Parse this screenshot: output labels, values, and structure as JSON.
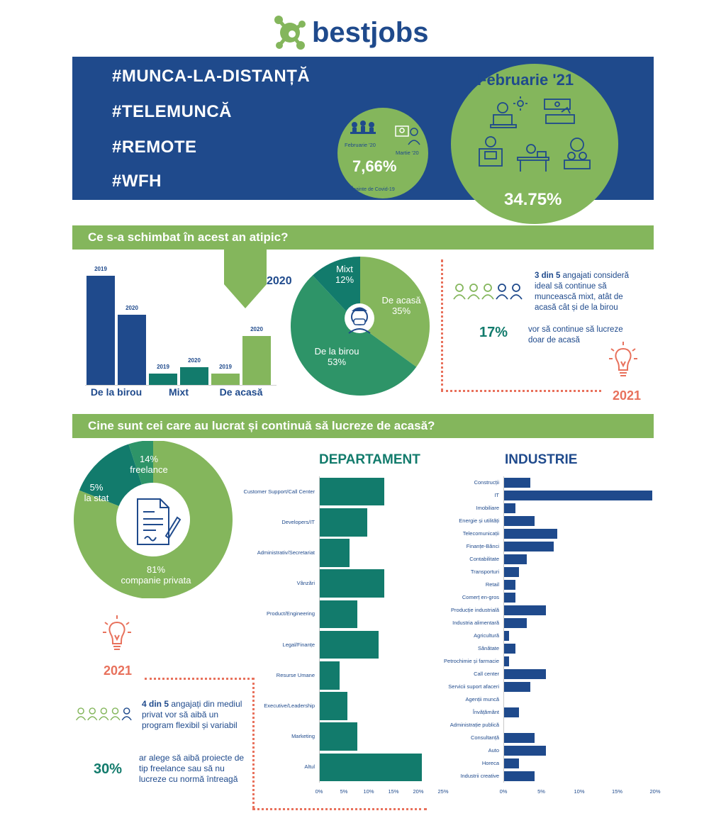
{
  "header": {
    "brand": "bestjobs"
  },
  "banner": {
    "tags": [
      "#MUNCA-LA-DISTANȚĂ",
      "#TELEMUNCĂ",
      "#REMOTE",
      "#WFH"
    ],
    "small_circle": {
      "left_label": "Februarie '20",
      "right_label": "Martie '20",
      "value": "7,66%",
      "caption": "Înainte de Covid-19"
    },
    "big_circle": {
      "title": "Februarie '21",
      "value": "34.75%"
    }
  },
  "section1": {
    "title": "Ce s-a schimbat în acest an atipic?",
    "bars": {
      "groups": [
        {
          "label": "De la birou",
          "v2019": 28,
          "v2020": 18
        },
        {
          "label": "Mixt",
          "v2019": 3,
          "v2020": 4.5
        },
        {
          "label": "De acasă",
          "v2019": 3,
          "v2020": 12.5
        }
      ],
      "year_a": "2019",
      "year_b": "2020"
    },
    "pie": {
      "year": "2020",
      "slices": [
        {
          "name": "De acasă",
          "pct": "35%",
          "value": 35,
          "color": "#84b65c"
        },
        {
          "name": "De la birou",
          "pct": "53%",
          "value": 53,
          "color": "#2e9468"
        },
        {
          "name": "Mixt",
          "pct": "12%",
          "value": 12,
          "color": "#127b6c"
        }
      ]
    },
    "insight": {
      "bold": "3 din 5",
      "text": " angajati consideră ideal să continue să muncească mixt, atât de acasă cât și de la birou",
      "pct": "17%",
      "pct_text": "vor să continue să lucreze doar de acasă",
      "year": "2021"
    }
  },
  "section2": {
    "title": "Cine sunt cei care au lucrat și continuă să lucreze de acasă?",
    "donut": {
      "slices": [
        {
          "pct": "14%",
          "name": "freelance",
          "value": 14,
          "color": "#127b6c"
        },
        {
          "pct": "5%",
          "name": "la stat",
          "value": 5,
          "color": "#2e9468"
        },
        {
          "pct": "81%",
          "name": "companie privata",
          "value": 81,
          "color": "#84b65c"
        }
      ]
    },
    "insight": {
      "year": "2021",
      "bold": "4 din 5",
      "text": " angajați din mediul privat vor să aibă un program flexibil și variabil",
      "pct": "30%",
      "pct_text": "ar alege să aibă proiecte de tip freelance sau să nu lucreze cu normă întreagă"
    }
  },
  "chart_data": [
    {
      "type": "bar",
      "title": "DEPARTAMENT",
      "categories": [
        "Customer Support/Call Center",
        "Developers/IT",
        "Administrativ/Secretariat",
        "Vânzări",
        "Product/Engineering",
        "Legal/Finanțe",
        "Resurse Umane",
        "Executive/Leadership",
        "Marketing",
        "Altul"
      ],
      "values": [
        13,
        9.5,
        6,
        13,
        7.5,
        11.8,
        4,
        5.5,
        7.5,
        20.5
      ],
      "xticks": [
        "0%",
        "5%",
        "10%",
        "15%",
        "20%",
        "25%"
      ],
      "xlim": [
        0,
        25
      ],
      "color": "#127b6c"
    },
    {
      "type": "bar",
      "title": "INDUSTRIE",
      "categories": [
        "Construcții",
        "IT",
        "Imobiliare",
        "Energie și utilități",
        "Telecomunicații",
        "Finanțe-Bănci",
        "Contabilitate",
        "Transporturi",
        "Retail",
        "Comerț en-gros",
        "Producție industrială",
        "Industria alimentară",
        "Agricultură",
        "Sănătate",
        "Petrochimie și farmacie",
        "Call center",
        "Servicii suport afaceri",
        "Agenții muncă",
        "Învățământ",
        "Administrație publică",
        "Consultanță",
        "Auto",
        "Horeca",
        "Industrii creative"
      ],
      "values": [
        3.5,
        19.5,
        1.5,
        4,
        7,
        6.5,
        3,
        2,
        1.5,
        1.5,
        5.5,
        3,
        0.7,
        1.5,
        0.7,
        5.5,
        3.5,
        0,
        2,
        0,
        4,
        5.5,
        2,
        4
      ],
      "xticks": [
        "0%",
        "5%",
        "10%",
        "15%",
        "20%"
      ],
      "xlim": [
        0,
        20
      ],
      "color": "#1f4a8c"
    }
  ]
}
